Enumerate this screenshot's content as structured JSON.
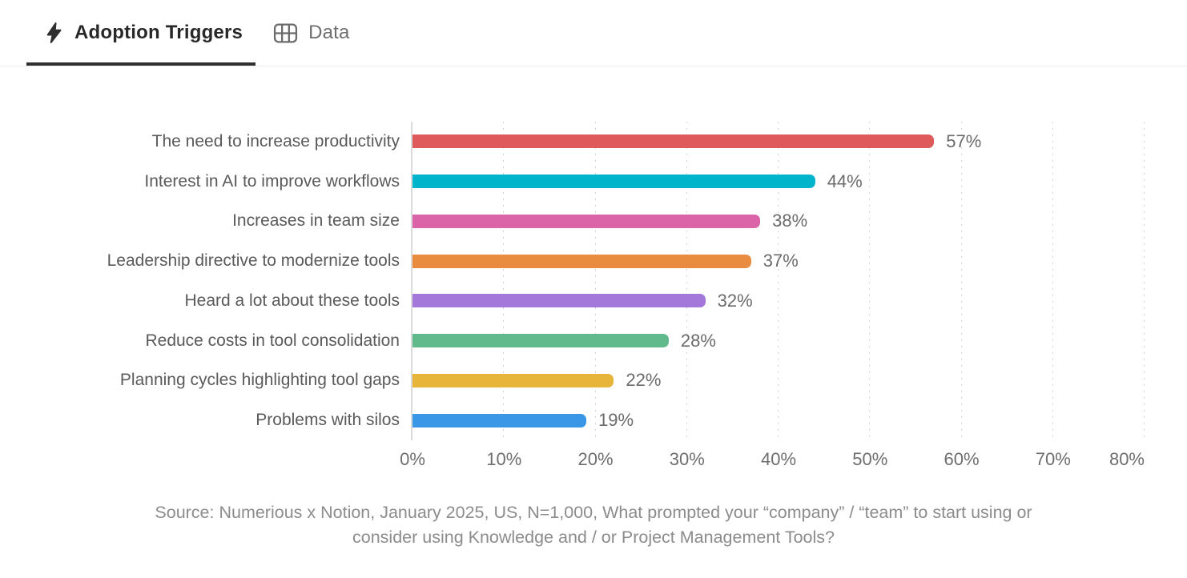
{
  "tabs": [
    {
      "label": "Adoption Triggers",
      "icon": "lightning-icon",
      "active": true
    },
    {
      "label": "Data",
      "icon": "table-icon",
      "active": false
    }
  ],
  "chart_data": {
    "type": "bar",
    "orientation": "horizontal",
    "title": "Adoption Triggers",
    "categories": [
      "The need to increase productivity",
      "Interest in AI to improve workflows",
      "Increases in team size",
      "Leadership directive to modernize tools",
      "Heard a lot about these tools",
      "Reduce costs in tool consolidation",
      "Planning cycles highlighting tool gaps",
      "Problems with silos"
    ],
    "values": [
      57,
      44,
      38,
      37,
      32,
      28,
      22,
      19
    ],
    "value_labels": [
      "57%",
      "44%",
      "38%",
      "37%",
      "32%",
      "28%",
      "22%",
      "19%"
    ],
    "bar_colors": [
      "#DF5B5B",
      "#00B4CC",
      "#DB64A8",
      "#EA8C40",
      "#A478DB",
      "#60BA8B",
      "#E6B53A",
      "#3A97E8"
    ],
    "xlim": [
      0,
      80
    ],
    "x_tick_labels": [
      "0%",
      "10%",
      "20%",
      "30%",
      "40%",
      "50%",
      "60%",
      "70%",
      "80%"
    ],
    "grid": "vertical-dotted",
    "legend": "none"
  },
  "source_note": {
    "line1": "Source: Numerious x Notion, January 2025, US, N=1,000, What prompted your “company” / “team” to start using or",
    "line2": "consider using Knowledge and / or Project Management Tools?"
  }
}
